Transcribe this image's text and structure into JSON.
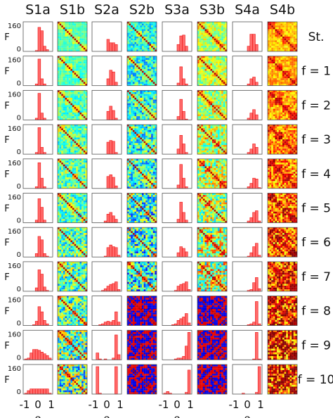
{
  "chart_data": {
    "type": "histogram-and-heatmap-grid",
    "column_headers": [
      "S1a",
      "S1b",
      "S2a",
      "S2b",
      "S3a",
      "S3b",
      "S4a",
      "S4b"
    ],
    "row_labels": [
      "St.",
      "f = 1",
      "f = 2",
      "f = 3",
      "f = 4",
      "f = 5",
      "f = 6",
      "f = 7",
      "f = 8",
      "f = 9",
      "f = 10"
    ],
    "y_axis": {
      "label": "F",
      "ticks": [
        "160",
        "0"
      ],
      "ylim": [
        0,
        160
      ]
    },
    "x_axis": {
      "label": "ρ",
      "ticks": [
        "-1",
        "0",
        "1"
      ],
      "xlim": [
        -1,
        1
      ]
    },
    "histogram_bins": [
      -1.0,
      -0.8,
      -0.6,
      -0.4,
      -0.2,
      0.0,
      0.2,
      0.4,
      0.6,
      0.8,
      1.0
    ],
    "histograms": {
      "S1a": [
        [
          0,
          0,
          0,
          0,
          5,
          140,
          120,
          30,
          10,
          0
        ],
        [
          0,
          0,
          0,
          0,
          10,
          155,
          40,
          10,
          0,
          0
        ],
        [
          0,
          0,
          0,
          0,
          10,
          155,
          40,
          10,
          0,
          0
        ],
        [
          0,
          0,
          0,
          0,
          10,
          155,
          40,
          10,
          0,
          0
        ],
        [
          0,
          0,
          0,
          0,
          10,
          150,
          60,
          10,
          0,
          0
        ],
        [
          0,
          0,
          0,
          0,
          15,
          140,
          90,
          15,
          0,
          0
        ],
        [
          0,
          0,
          0,
          0,
          20,
          120,
          100,
          20,
          5,
          0
        ],
        [
          0,
          0,
          0,
          0,
          20,
          125,
          100,
          25,
          5,
          0
        ],
        [
          0,
          0,
          0,
          5,
          25,
          110,
          80,
          30,
          10,
          0
        ],
        [
          5,
          10,
          40,
          60,
          60,
          55,
          45,
          35,
          25,
          10
        ],
        [
          5,
          20,
          30,
          30,
          30,
          30,
          30,
          30,
          30,
          5
        ]
      ],
      "S2a": [
        [
          0,
          0,
          0,
          0,
          0,
          70,
          50,
          50,
          40,
          0
        ],
        [
          0,
          0,
          0,
          0,
          0,
          40,
          90,
          80,
          20,
          0
        ],
        [
          0,
          0,
          0,
          0,
          0,
          50,
          80,
          55,
          10,
          0
        ],
        [
          0,
          0,
          0,
          0,
          0,
          70,
          80,
          75,
          10,
          0
        ],
        [
          0,
          0,
          0,
          0,
          0,
          70,
          80,
          65,
          15,
          0
        ],
        [
          0,
          0,
          0,
          0,
          10,
          50,
          60,
          40,
          20,
          0
        ],
        [
          0,
          0,
          0,
          0,
          5,
          55,
          70,
          60,
          55,
          10
        ],
        [
          0,
          0,
          0,
          5,
          15,
          30,
          40,
          45,
          55,
          10
        ],
        [
          0,
          0,
          5,
          10,
          20,
          25,
          20,
          30,
          80,
          20
        ],
        [
          0,
          40,
          5,
          0,
          5,
          0,
          0,
          10,
          145,
          30
        ],
        [
          0,
          160,
          5,
          0,
          0,
          0,
          0,
          0,
          160,
          0
        ]
      ],
      "S3a": [
        [
          0,
          0,
          0,
          0,
          0,
          40,
          90,
          95,
          30,
          0
        ],
        [
          0,
          0,
          0,
          0,
          0,
          15,
          110,
          40,
          10,
          0
        ],
        [
          0,
          0,
          0,
          0,
          0,
          20,
          120,
          50,
          5,
          0
        ],
        [
          0,
          0,
          0,
          0,
          0,
          30,
          110,
          60,
          10,
          0
        ],
        [
          0,
          0,
          0,
          0,
          0,
          20,
          140,
          60,
          10,
          0
        ],
        [
          0,
          0,
          0,
          0,
          0,
          20,
          120,
          60,
          15,
          0
        ],
        [
          0,
          0,
          0,
          0,
          0,
          25,
          60,
          50,
          30,
          0
        ],
        [
          0,
          0,
          0,
          0,
          5,
          30,
          40,
          45,
          55,
          10
        ],
        [
          0,
          0,
          0,
          5,
          10,
          30,
          40,
          50,
          70,
          15
        ],
        [
          0,
          0,
          0,
          0,
          5,
          10,
          10,
          20,
          80,
          160
        ],
        [
          5,
          15,
          5,
          0,
          0,
          0,
          0,
          0,
          10,
          140
        ]
      ],
      "S4a": [
        [
          0,
          0,
          0,
          0,
          0,
          30,
          100,
          100,
          40,
          0
        ],
        [
          0,
          0,
          0,
          0,
          0,
          10,
          40,
          50,
          20,
          0
        ],
        [
          0,
          0,
          0,
          0,
          0,
          10,
          40,
          60,
          30,
          0
        ],
        [
          0,
          0,
          0,
          0,
          0,
          10,
          30,
          60,
          40,
          0
        ],
        [
          0,
          0,
          0,
          0,
          0,
          10,
          30,
          60,
          55,
          5
        ],
        [
          0,
          0,
          0,
          0,
          0,
          10,
          30,
          60,
          70,
          10
        ],
        [
          0,
          0,
          0,
          0,
          0,
          5,
          25,
          60,
          80,
          10
        ],
        [
          0,
          0,
          0,
          0,
          0,
          5,
          10,
          50,
          80,
          15
        ],
        [
          0,
          0,
          0,
          0,
          0,
          5,
          10,
          20,
          140,
          10
        ],
        [
          0,
          0,
          0,
          0,
          0,
          0,
          0,
          5,
          160,
          5
        ],
        [
          0,
          0,
          0,
          5,
          0,
          0,
          0,
          0,
          10,
          160
        ]
      ]
    },
    "heatmap_colormap": "jet"
  },
  "colors": {
    "histogram_fill": "#ff6a6a",
    "histogram_stroke": "#ee1111",
    "panel_border": "#555555"
  }
}
